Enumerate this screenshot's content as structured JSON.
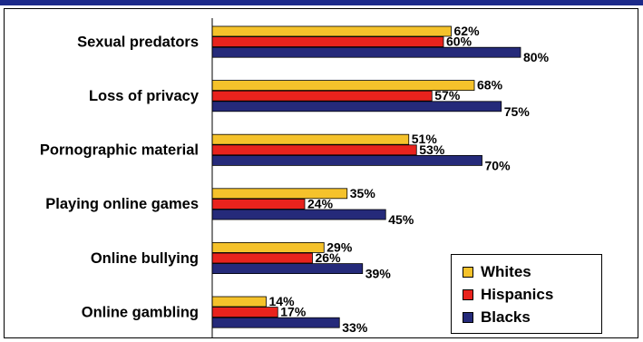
{
  "chart_data": {
    "type": "bar",
    "orientation": "horizontal",
    "categories": [
      "Sexual predators",
      "Loss of privacy",
      "Pornographic material",
      "Playing online games",
      "Online bullying",
      "Online gambling"
    ],
    "series": [
      {
        "name": "Whites",
        "color": "#f5c22b",
        "values": [
          62,
          68,
          51,
          35,
          29,
          14
        ]
      },
      {
        "name": "Hispanics",
        "color": "#e8231d",
        "values": [
          60,
          57,
          53,
          24,
          26,
          17
        ]
      },
      {
        "name": "Blacks",
        "color": "#252a7a",
        "values": [
          80,
          75,
          70,
          45,
          39,
          33
        ]
      }
    ],
    "value_suffix": "%",
    "xlim": [
      0,
      100
    ],
    "grid": false,
    "legend_position": "bottom-right",
    "title": "",
    "xlabel": "",
    "ylabel": ""
  }
}
